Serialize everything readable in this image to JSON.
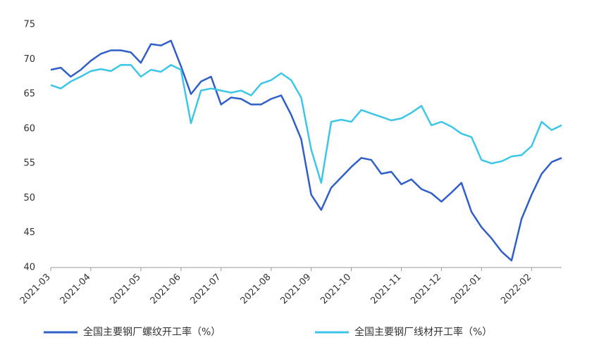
{
  "chart_data": {
    "type": "line",
    "categories": [
      "2021-03",
      null,
      null,
      null,
      "2021-04",
      null,
      null,
      null,
      null,
      "2021-05",
      null,
      null,
      null,
      "2021-06",
      null,
      null,
      null,
      "2021-07",
      null,
      null,
      null,
      null,
      "2021-08",
      null,
      null,
      null,
      "2021-09",
      null,
      null,
      null,
      "2021-10",
      null,
      null,
      null,
      null,
      "2021-11",
      null,
      null,
      null,
      "2021-12",
      null,
      null,
      null,
      "2022-01",
      null,
      null,
      null,
      null,
      "2022-02",
      null,
      null,
      null
    ],
    "series": [
      {
        "name": "全国主要钢厂螺纹开工率（%）",
        "color": "#2f5fc8",
        "values": [
          68.5,
          68.8,
          67.5,
          68.5,
          69.8,
          70.8,
          71.3,
          71.3,
          71.0,
          69.5,
          72.2,
          72.0,
          72.7,
          69,
          65,
          66.8,
          67.5,
          63.5,
          64.5,
          64.3,
          63.5,
          63.5,
          64.3,
          64.8,
          62,
          58.5,
          50.5,
          48.3,
          51.5,
          53,
          54.5,
          55.8,
          55.5,
          53.5,
          53.8,
          52,
          52.7,
          51.3,
          50.7,
          49.5,
          50.8,
          52.2,
          48,
          45.8,
          44.2,
          42.3,
          41,
          47,
          50.5,
          53.5,
          55.2,
          55.8
        ]
      },
      {
        "name": "全国主要钢厂线材开工率（%）",
        "color": "#3ec6e8",
        "values": [
          66.3,
          65.8,
          66.8,
          67.5,
          68.3,
          68.6,
          68.3,
          69.2,
          69.2,
          67.5,
          68.5,
          68.2,
          69.2,
          68.5,
          60.8,
          65.5,
          65.8,
          65.5,
          65.2,
          65.5,
          64.8,
          66.5,
          67,
          68,
          67,
          64.5,
          57,
          52.2,
          61,
          61.3,
          61,
          62.7,
          62.2,
          61.7,
          61.2,
          61.5,
          62.3,
          63.3,
          60.5,
          61,
          60.3,
          59.3,
          58.8,
          55.5,
          55,
          55.3,
          56,
          56.2,
          57.5,
          61,
          59.8,
          60.5
        ]
      }
    ],
    "ylim": [
      40,
      75
    ],
    "yticks": [
      40,
      45,
      50,
      55,
      60,
      65,
      70,
      75
    ],
    "grid": false
  }
}
